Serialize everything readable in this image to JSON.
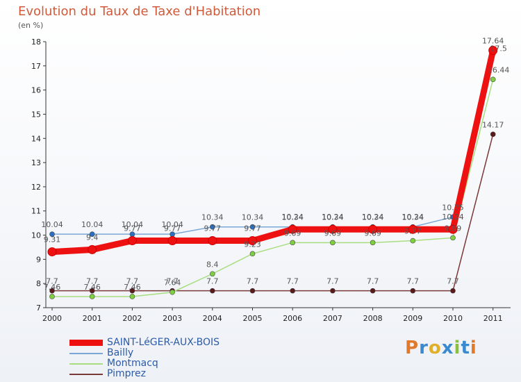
{
  "header": {
    "title": "Evolution du Taux de Taxe d'Habitation",
    "subtitle": "(en %)"
  },
  "logo": {
    "text": "Proxiti",
    "colors": [
      "#e07a2a",
      "#3a8ad0",
      "#e0b02a",
      "#3a8ad0",
      "#8ac040",
      "#3a8ad0",
      "#e07a2a"
    ]
  },
  "chart_data": {
    "type": "line",
    "title": "Evolution du Taux de Taxe d'Habitation",
    "ylabel": "(en %)",
    "xlabel": "",
    "categories": [
      "2000",
      "2001",
      "2002",
      "2003",
      "2004",
      "2005",
      "2006",
      "2007",
      "2008",
      "2009",
      "2010",
      "2011"
    ],
    "ylim": [
      7,
      18
    ],
    "yticks": [
      7,
      8,
      9,
      10,
      11,
      12,
      13,
      14,
      15,
      16,
      17,
      18
    ],
    "grid": false,
    "series": [
      {
        "name": "SAINT-LéGER-AUX-BOIS",
        "color": "#ee1111",
        "values": [
          9.31,
          9.4,
          9.77,
          9.77,
          9.77,
          9.77,
          10.24,
          10.24,
          10.24,
          10.24,
          10.24,
          17.64
        ],
        "labels": [
          "9.31",
          "9.4",
          "9.77",
          "9.77",
          "9.77",
          "9.77",
          "10.24",
          "10.24",
          "10.24",
          "10.24",
          "10.24",
          "17.64"
        ]
      },
      {
        "name": "Bailly",
        "color": "#7aa7d6",
        "values": [
          10.04,
          10.04,
          10.04,
          10.04,
          10.34,
          10.34,
          10.34,
          10.34,
          10.34,
          10.34,
          10.75,
          17.5
        ],
        "labels": [
          "10.04",
          "10.04",
          "10.04",
          "10.04",
          "10.34",
          "10.34",
          "10.34",
          "10.34",
          "10.34",
          "10.34",
          "10.75",
          "17.5"
        ]
      },
      {
        "name": "Montmacq",
        "color": "#a8dd80",
        "values": [
          7.46,
          7.46,
          7.46,
          7.64,
          8.4,
          9.23,
          9.69,
          9.69,
          9.69,
          9.77,
          9.89,
          16.44
        ],
        "labels": [
          "7.46",
          "7.46",
          "7.46",
          "7.64",
          "8.4",
          "9.23",
          "9.69",
          "9.69",
          "9.69",
          "9.77",
          "9.89",
          "16.44"
        ]
      },
      {
        "name": "Pimprez",
        "color": "#7a3838",
        "values": [
          7.7,
          7.7,
          7.7,
          7.7,
          7.7,
          7.7,
          7.7,
          7.7,
          7.7,
          7.7,
          7.7,
          14.17
        ],
        "labels": [
          "7.7",
          "7.7",
          "7.7",
          "7.7",
          "7.7",
          "7.7",
          "7.7",
          "7.7",
          "7.7",
          "7.7",
          "7.7",
          "14.17"
        ]
      }
    ],
    "legend_position": "bottom-left"
  }
}
